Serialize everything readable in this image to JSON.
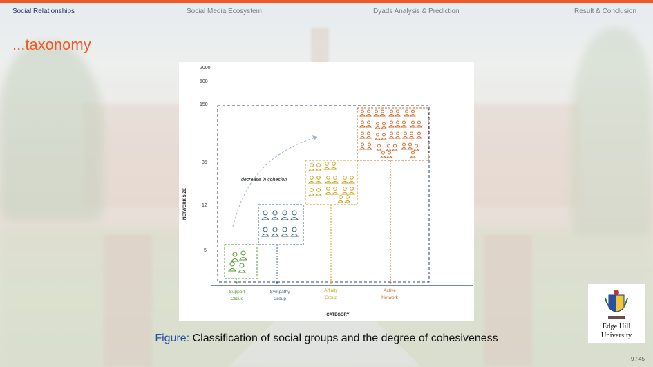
{
  "nav": {
    "items": [
      "Social Relationships",
      "Social Media Ecosystem",
      "Dyads Analysis & Prediction",
      "Result & Conclusion"
    ],
    "active_index": 0
  },
  "slide": {
    "title": "...taxonomy"
  },
  "figure": {
    "y_ticks": [
      "2000",
      "500",
      "150",
      "35",
      "12",
      "5"
    ],
    "y_axis_label": "NETWORK SIZE",
    "x_axis_label": "CATEGORY",
    "annotation": "decrease in cohesion",
    "groups": [
      {
        "name": "Support",
        "name2": "Clique",
        "color": "#5a9a3a"
      },
      {
        "name": "Sympathy",
        "name2": "Group",
        "color": "#3f6a8a"
      },
      {
        "name": "Affinity",
        "name2": "Group",
        "color": "#c8a21c"
      },
      {
        "name": "Active",
        "name2": "Network",
        "color": "#d06a2a"
      }
    ],
    "frame_color": "#2a3f7a"
  },
  "caption": {
    "label": "Figure:",
    "text": "Classification of social groups and the degree of cohesiveness"
  },
  "logo": {
    "line1": "Edge Hill",
    "line2": "University"
  },
  "page": {
    "number": "9 / 45"
  },
  "colors": {
    "accent": "#f05a28",
    "nav_active": "#1f3b73",
    "caption_label": "#2a4ea0"
  }
}
